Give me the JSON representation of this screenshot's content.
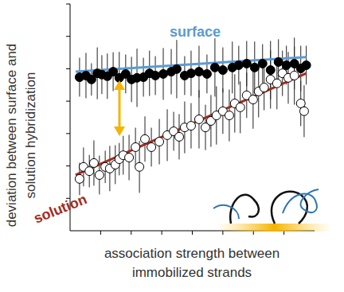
{
  "chart_data": {
    "type": "scatter",
    "x_label": "association strength between\nimmobilized strands",
    "y_label": "deviation between surface and\nsolution hybridization",
    "xlim": [
      0,
      8
    ],
    "xticks": [
      1,
      2,
      3,
      4,
      5,
      6,
      7
    ],
    "ylim": [
      0,
      7
    ],
    "yticks": [
      1,
      2,
      3,
      4,
      5,
      6,
      7
    ],
    "tick_labels": false,
    "grid": false,
    "series": [
      {
        "name": "surface",
        "marker": "circle",
        "color": "#000000",
        "x": [
          0.31,
          0.52,
          0.7,
          0.89,
          1.04,
          1.22,
          1.41,
          1.61,
          1.82,
          2.01,
          2.19,
          2.4,
          2.6,
          2.79,
          3.05,
          3.31,
          3.49,
          3.75,
          3.96,
          4.22,
          4.48,
          4.74,
          5.0,
          5.31,
          5.52,
          5.78,
          6.04,
          6.3,
          6.56,
          6.82,
          7.08,
          7.34,
          7.55,
          7.73
        ],
        "values": [
          4.74,
          4.79,
          4.67,
          4.86,
          4.82,
          4.77,
          4.91,
          4.72,
          4.84,
          4.67,
          4.72,
          4.74,
          4.86,
          4.79,
          4.84,
          4.91,
          4.99,
          4.79,
          4.86,
          4.91,
          4.84,
          5.04,
          4.96,
          5.04,
          5.11,
          5.16,
          5.04,
          5.16,
          4.96,
          5.21,
          5.11,
          5.16,
          5.01,
          5.11
        ],
        "errors": [
          0.6,
          0.7,
          0.5,
          0.8,
          0.6,
          0.7,
          0.6,
          0.8,
          0.6,
          0.7,
          0.9,
          0.6,
          0.7,
          0.6,
          0.8,
          0.7,
          0.9,
          0.6,
          0.7,
          0.8,
          0.6,
          0.9,
          0.7,
          0.8,
          0.6,
          0.7,
          0.8,
          0.6,
          0.9,
          0.7,
          0.6,
          0.8,
          0.7,
          0.6
        ],
        "trend": {
          "color": "#5b9bd5",
          "x": [
            0.18,
            7.73
          ],
          "values": [
            4.91,
            5.36
          ]
        }
      },
      {
        "name": "solution",
        "marker": "open_circle",
        "color": "#000000",
        "x": [
          0.31,
          0.44,
          0.63,
          0.78,
          0.96,
          1.15,
          1.3,
          1.48,
          1.61,
          1.74,
          1.93,
          2.14,
          2.27,
          2.45,
          2.66,
          2.92,
          3.18,
          3.39,
          3.57,
          3.75,
          3.96,
          4.22,
          4.43,
          4.61,
          4.79,
          5.0,
          5.21,
          5.39,
          5.57,
          5.78,
          5.99,
          6.17,
          6.35,
          6.56,
          6.77,
          6.95,
          7.14,
          7.34,
          7.55,
          7.66
        ],
        "values": [
          1.6,
          1.97,
          1.84,
          2.09,
          1.72,
          1.97,
          1.92,
          2.04,
          2.21,
          2.33,
          2.26,
          2.58,
          1.97,
          2.83,
          2.58,
          2.75,
          2.95,
          3.07,
          2.9,
          3.19,
          3.24,
          3.44,
          3.19,
          3.39,
          3.56,
          3.69,
          3.56,
          3.93,
          3.81,
          4.18,
          4.05,
          4.3,
          4.42,
          4.67,
          4.55,
          4.86,
          4.72,
          4.79,
          3.93,
          3.69
        ],
        "errors": [
          0.5,
          0.6,
          0.5,
          0.7,
          0.6,
          0.5,
          0.7,
          0.6,
          0.5,
          0.6,
          0.7,
          0.6,
          0.8,
          0.7,
          0.6,
          0.7,
          0.8,
          0.6,
          0.7,
          0.8,
          0.7,
          0.9,
          0.7,
          0.8,
          0.9,
          0.7,
          0.8,
          0.9,
          0.8,
          0.7,
          0.9,
          0.8,
          0.7,
          0.9,
          0.8,
          0.7,
          0.8,
          0.9,
          0.7,
          0.8
        ],
        "trend": {
          "color": "#a52a22",
          "x": [
            0.18,
            7.73
          ],
          "values": [
            1.72,
            4.86
          ]
        }
      }
    ]
  }
}
